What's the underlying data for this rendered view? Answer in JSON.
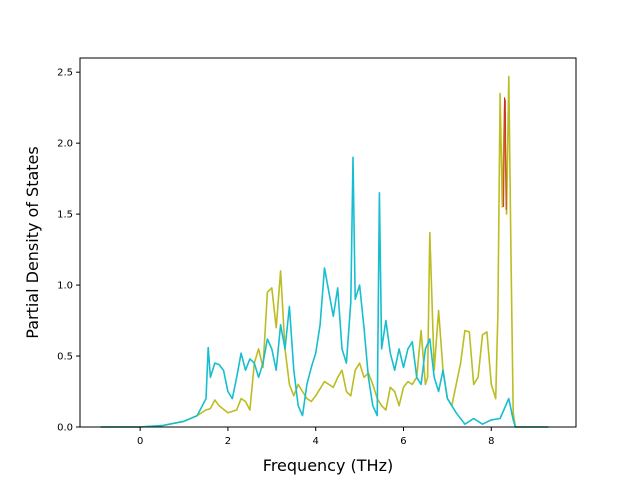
{
  "chart_data": {
    "type": "line",
    "title": "",
    "xlabel": "Frequency (THz)",
    "ylabel": "Partial Density of States",
    "xlim": [
      -1.37,
      9.93
    ],
    "ylim": [
      0.0,
      2.6
    ],
    "xticks": [
      0,
      2,
      4,
      6,
      8
    ],
    "yticks": [
      0.0,
      0.5,
      1.0,
      1.5,
      2.0,
      2.5
    ],
    "tick_labels_x": [
      "0",
      "2",
      "4",
      "6",
      "8"
    ],
    "tick_labels_y": [
      "0.0",
      "0.5",
      "1.0",
      "1.5",
      "2.0",
      "2.5"
    ],
    "grid": false,
    "legend": "none",
    "series": [
      {
        "color": "#bcbd22",
        "x": [
          -0.9,
          0.0,
          0.5,
          1.0,
          1.3,
          1.5,
          1.6,
          1.7,
          1.8,
          2.0,
          2.2,
          2.3,
          2.4,
          2.5,
          2.6,
          2.7,
          2.8,
          2.9,
          3.0,
          3.1,
          3.2,
          3.3,
          3.4,
          3.5,
          3.6,
          3.7,
          3.8,
          3.9,
          4.0,
          4.2,
          4.4,
          4.5,
          4.6,
          4.7,
          4.8,
          4.9,
          5.0,
          5.1,
          5.2,
          5.3,
          5.4,
          5.5,
          5.6,
          5.7,
          5.8,
          5.9,
          6.0,
          6.1,
          6.2,
          6.3,
          6.4,
          6.5,
          6.55,
          6.6,
          6.7,
          6.8,
          6.9,
          7.0,
          7.1,
          7.2,
          7.3,
          7.4,
          7.5,
          7.6,
          7.7,
          7.8,
          7.9,
          8.0,
          8.1,
          8.15,
          8.2,
          8.25,
          8.3,
          8.35,
          8.4,
          8.45,
          8.5,
          8.55,
          9.3
        ],
        "y": [
          0.0,
          0.0,
          0.01,
          0.04,
          0.08,
          0.12,
          0.13,
          0.19,
          0.15,
          0.1,
          0.12,
          0.2,
          0.18,
          0.12,
          0.45,
          0.55,
          0.42,
          0.95,
          0.98,
          0.7,
          1.1,
          0.55,
          0.3,
          0.22,
          0.3,
          0.25,
          0.2,
          0.18,
          0.22,
          0.32,
          0.28,
          0.35,
          0.4,
          0.25,
          0.22,
          0.4,
          0.45,
          0.35,
          0.38,
          0.3,
          0.2,
          0.15,
          0.12,
          0.28,
          0.25,
          0.15,
          0.28,
          0.32,
          0.3,
          0.35,
          0.68,
          0.3,
          0.35,
          1.37,
          0.4,
          0.82,
          0.4,
          0.2,
          0.15,
          0.3,
          0.45,
          0.68,
          0.67,
          0.3,
          0.35,
          0.65,
          0.67,
          0.3,
          0.2,
          0.8,
          2.35,
          1.55,
          2.25,
          1.5,
          2.47,
          1.2,
          0.1,
          0.0,
          0.0
        ]
      },
      {
        "color": "#17becf",
        "x": [
          -0.9,
          0.0,
          0.5,
          1.0,
          1.3,
          1.5,
          1.55,
          1.6,
          1.7,
          1.8,
          1.9,
          2.0,
          2.1,
          2.2,
          2.3,
          2.4,
          2.5,
          2.6,
          2.7,
          2.8,
          2.9,
          3.0,
          3.1,
          3.2,
          3.3,
          3.4,
          3.5,
          3.6,
          3.7,
          3.8,
          3.9,
          4.0,
          4.1,
          4.2,
          4.3,
          4.4,
          4.5,
          4.6,
          4.7,
          4.8,
          4.85,
          4.9,
          5.0,
          5.1,
          5.2,
          5.3,
          5.4,
          5.45,
          5.5,
          5.6,
          5.7,
          5.8,
          5.9,
          6.0,
          6.1,
          6.2,
          6.3,
          6.4,
          6.5,
          6.6,
          6.7,
          6.8,
          6.9,
          7.0,
          7.2,
          7.4,
          7.6,
          7.8,
          8.0,
          8.2,
          8.4,
          8.5,
          8.55,
          9.3
        ],
        "y": [
          0.0,
          0.0,
          0.01,
          0.04,
          0.08,
          0.2,
          0.56,
          0.35,
          0.45,
          0.44,
          0.4,
          0.25,
          0.2,
          0.35,
          0.52,
          0.4,
          0.48,
          0.45,
          0.35,
          0.45,
          0.62,
          0.55,
          0.4,
          0.72,
          0.55,
          0.85,
          0.4,
          0.15,
          0.08,
          0.3,
          0.42,
          0.52,
          0.72,
          1.12,
          0.95,
          0.78,
          0.98,
          0.55,
          0.45,
          0.88,
          1.9,
          0.9,
          1.0,
          0.7,
          0.35,
          0.15,
          0.08,
          1.65,
          0.55,
          0.75,
          0.52,
          0.4,
          0.55,
          0.42,
          0.55,
          0.6,
          0.35,
          0.3,
          0.55,
          0.62,
          0.35,
          0.25,
          0.4,
          0.2,
          0.1,
          0.02,
          0.06,
          0.02,
          0.05,
          0.06,
          0.2,
          0.05,
          0.0,
          0.0
        ]
      },
      {
        "color": "#d62728",
        "x": [
          8.28,
          8.3,
          8.32,
          8.34
        ],
        "y": [
          1.55,
          2.32,
          2.3,
          1.53
        ]
      }
    ]
  }
}
